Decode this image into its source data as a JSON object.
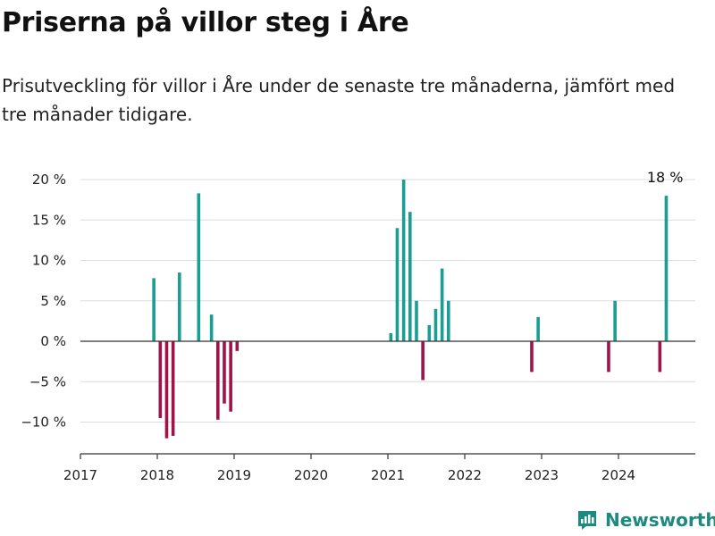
{
  "header": {
    "title": "Priserna på villor steg i Åre",
    "subtitle": "Prisutveckling för villor i Åre under de senaste tre månaderna, jämfört med tre månader tidigare."
  },
  "branding": {
    "name": "Newsworthy",
    "icon": "newsworthy-logo-icon",
    "color": "#1d8a80"
  },
  "chart_data": {
    "type": "bar",
    "title": "",
    "xlabel": "",
    "ylabel": "",
    "xlim": [
      "2017-01-01",
      "2024-12-31"
    ],
    "ylim": [
      -14,
      21
    ],
    "grid": true,
    "x_ticks": [
      "2017",
      "2018",
      "2019",
      "2020",
      "2021",
      "2022",
      "2023",
      "2024"
    ],
    "y_ticks": [
      {
        "value": 20,
        "label": "20 %"
      },
      {
        "value": 15,
        "label": "15 %"
      },
      {
        "value": 10,
        "label": "10 %"
      },
      {
        "value": 5,
        "label": "5 %"
      },
      {
        "value": 0,
        "label": "0 %"
      },
      {
        "value": -5,
        "label": "−5 %"
      },
      {
        "value": -10,
        "label": "−10 %"
      }
    ],
    "colors": {
      "positive": "#1a9e93",
      "negative": "#a1124a"
    },
    "annotation": {
      "date": "2024-08",
      "value": 18,
      "label": "18 %"
    },
    "series": [
      {
        "points": [
          {
            "date": "2017-12",
            "value": 7.8
          },
          {
            "date": "2018-01",
            "value": -9.5
          },
          {
            "date": "2018-02",
            "value": -12
          },
          {
            "date": "2018-03",
            "value": -11.7
          },
          {
            "date": "2018-04",
            "value": 8.5
          },
          {
            "date": "2018-07",
            "value": 18.3
          },
          {
            "date": "2018-09",
            "value": 3.3
          },
          {
            "date": "2018-10",
            "value": -9.7
          },
          {
            "date": "2018-11",
            "value": -7.7
          },
          {
            "date": "2018-12",
            "value": -8.7
          },
          {
            "date": "2019-01",
            "value": -1.2
          },
          {
            "date": "2021-01",
            "value": 1.0
          },
          {
            "date": "2021-02",
            "value": 14.0
          },
          {
            "date": "2021-03",
            "value": 20.0
          },
          {
            "date": "2021-04",
            "value": 16.0
          },
          {
            "date": "2021-05",
            "value": 5.0
          },
          {
            "date": "2021-06",
            "value": -4.8
          },
          {
            "date": "2021-07",
            "value": 2.0
          },
          {
            "date": "2021-08",
            "value": 4.0
          },
          {
            "date": "2021-09",
            "value": 9.0
          },
          {
            "date": "2021-10",
            "value": 5.0
          },
          {
            "date": "2022-11",
            "value": -3.8
          },
          {
            "date": "2022-12",
            "value": 3.0
          },
          {
            "date": "2023-11",
            "value": -3.8
          },
          {
            "date": "2023-12",
            "value": 5.0
          },
          {
            "date": "2024-07",
            "value": -3.8
          },
          {
            "date": "2024-08",
            "value": 18.0
          }
        ]
      }
    ]
  }
}
